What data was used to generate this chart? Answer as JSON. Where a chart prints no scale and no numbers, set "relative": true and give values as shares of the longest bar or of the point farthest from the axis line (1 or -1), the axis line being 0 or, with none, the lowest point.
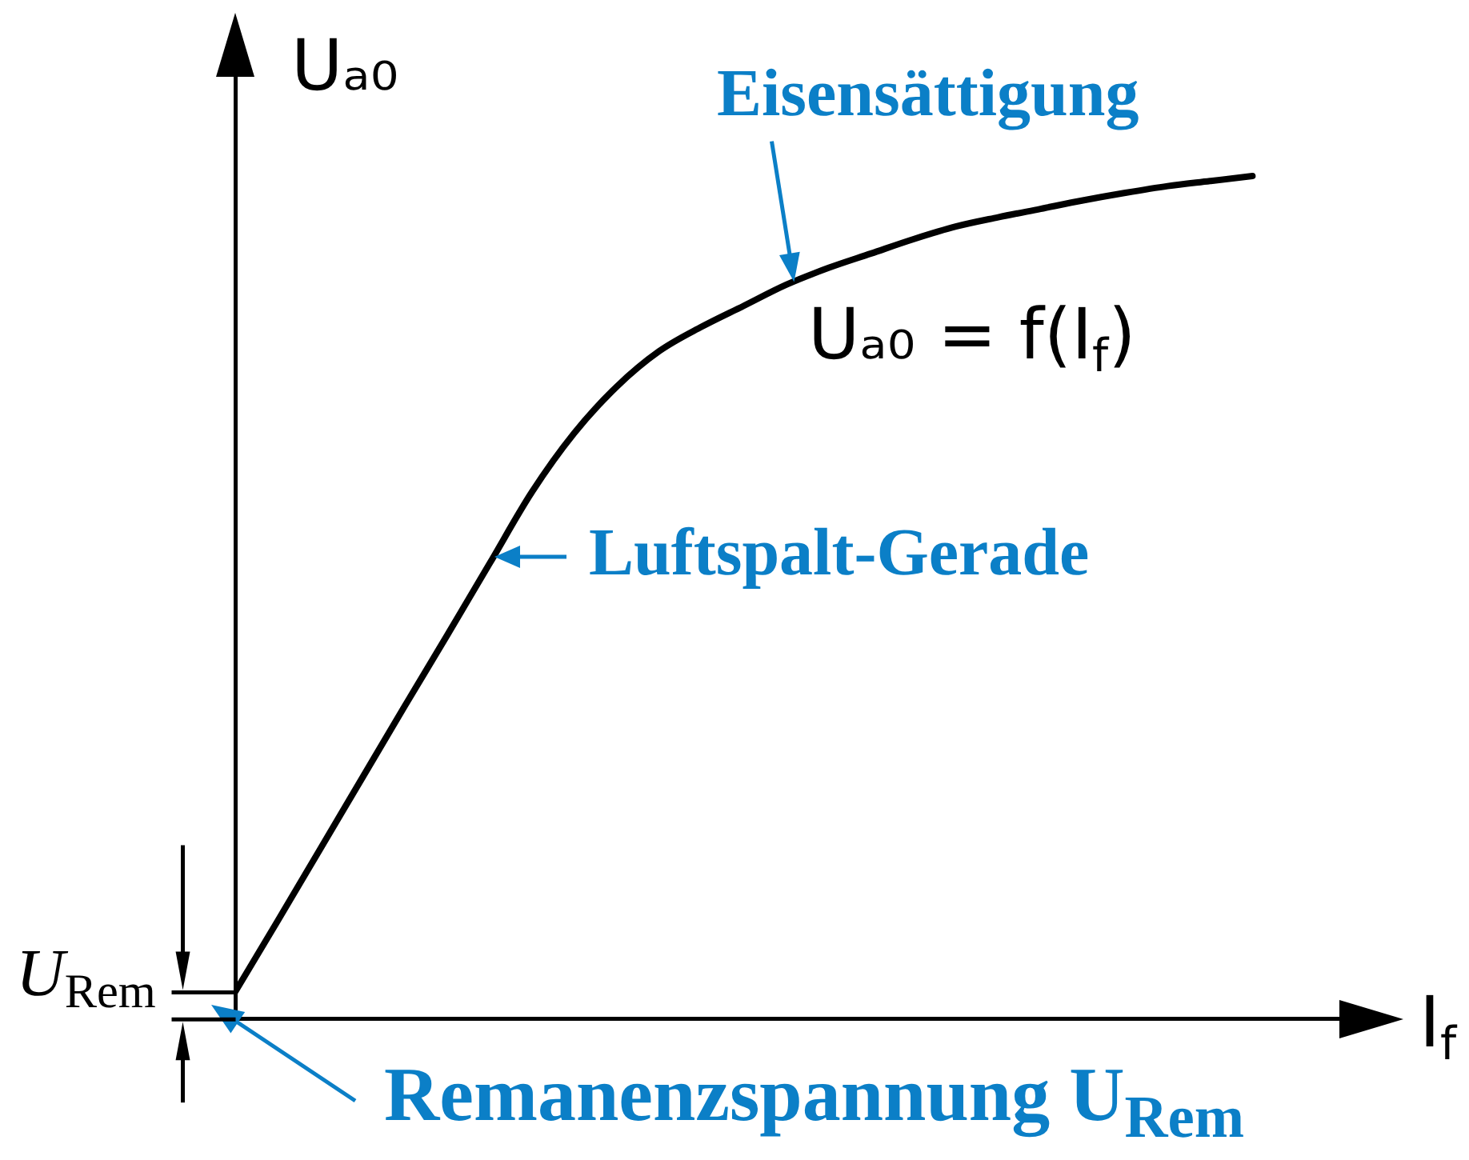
{
  "chart_data": {
    "type": "line",
    "relative": true,
    "xlabel": "I$_{f}$",
    "ylabel": "Uₐ₀",
    "categories": [
      null,
      null,
      null,
      null,
      null,
      null,
      null,
      null,
      null,
      null,
      null,
      null,
      null,
      null,
      null,
      null,
      null,
      null,
      null,
      null,
      null,
      null,
      null,
      null,
      null
    ],
    "series": [
      {
        "name": "Uₐ₀ = f(I$_{f}$)",
        "color": "#000000",
        "values": [
          0.032,
          0.116,
          0.201,
          0.286,
          0.371,
          0.455,
          0.54,
          0.625,
          0.695,
          0.75,
          0.792,
          0.821,
          0.846,
          0.871,
          0.891,
          0.908,
          0.925,
          0.94,
          0.951,
          0.961,
          0.971,
          0.98,
          0.988,
          0.994,
          1
        ]
      }
    ],
    "annotations": [
      "Eisensättigung",
      "Luftspalt-Gerade",
      "Remanenzspannung U$_{Rem}$",
      "U$_{Rem}$"
    ]
  }
}
